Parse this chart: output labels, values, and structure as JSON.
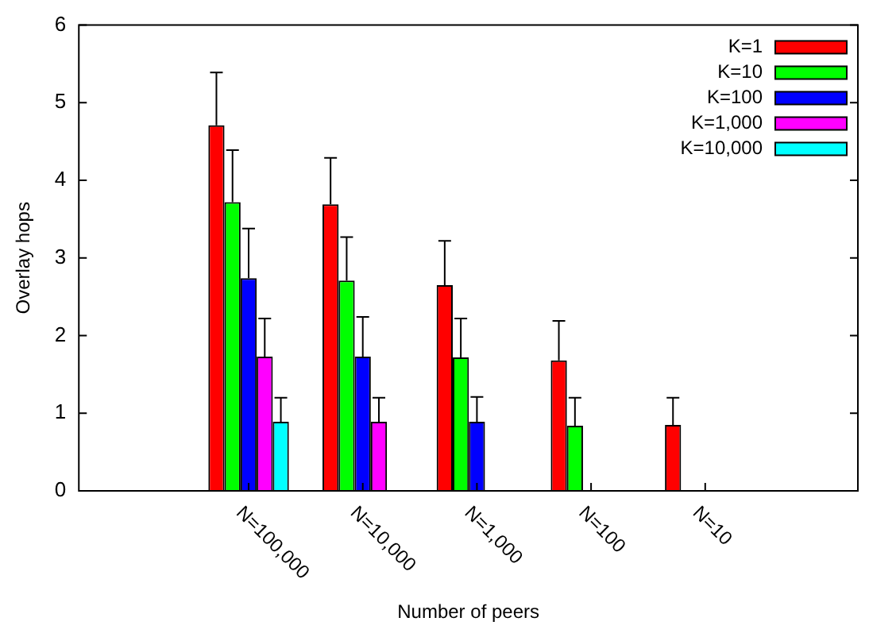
{
  "chart_data": {
    "type": "bar",
    "xlabel": "Number of peers",
    "ylabel": "Overlay hops",
    "categories": [
      "N=100,000",
      "N=10,000",
      "N=1,000",
      "N=100",
      "N=10"
    ],
    "series": [
      {
        "name": "K=1",
        "color": "#ff0000",
        "values": [
          4.71,
          3.69,
          2.65,
          1.68,
          0.85
        ],
        "errors": [
          [
            4.71,
            5.39
          ],
          [
            3.69,
            4.29
          ],
          [
            2.65,
            3.22
          ],
          [
            1.68,
            2.19
          ],
          [
            0.85,
            1.2
          ]
        ]
      },
      {
        "name": "K=10",
        "color": "#00ff00",
        "values": [
          3.72,
          2.71,
          1.72,
          0.84,
          0
        ],
        "errors": [
          [
            3.72,
            4.39
          ],
          [
            2.71,
            3.27
          ],
          [
            1.72,
            2.22
          ],
          [
            0.84,
            1.2
          ],
          null
        ]
      },
      {
        "name": "K=100",
        "color": "#0000ff",
        "values": [
          2.74,
          1.73,
          0.89,
          0,
          0
        ],
        "errors": [
          [
            2.74,
            3.38
          ],
          [
            1.73,
            2.24
          ],
          [
            0.89,
            1.21
          ],
          null,
          null
        ]
      },
      {
        "name": "K=1,000",
        "color": "#ff00ff",
        "values": [
          1.73,
          0.89,
          0,
          0,
          0
        ],
        "errors": [
          [
            1.73,
            2.22
          ],
          [
            0.89,
            1.2
          ],
          null,
          null,
          null
        ]
      },
      {
        "name": "K=10,000",
        "color": "#00ffff",
        "values": [
          0.89,
          0,
          0,
          0,
          0
        ],
        "errors": [
          [
            0.89,
            1.2
          ],
          null,
          null,
          null,
          null
        ]
      }
    ],
    "ylim": [
      0,
      6
    ],
    "yticks": [
      0,
      1,
      2,
      3,
      4,
      5,
      6
    ],
    "grid": false,
    "legend": "top right"
  }
}
